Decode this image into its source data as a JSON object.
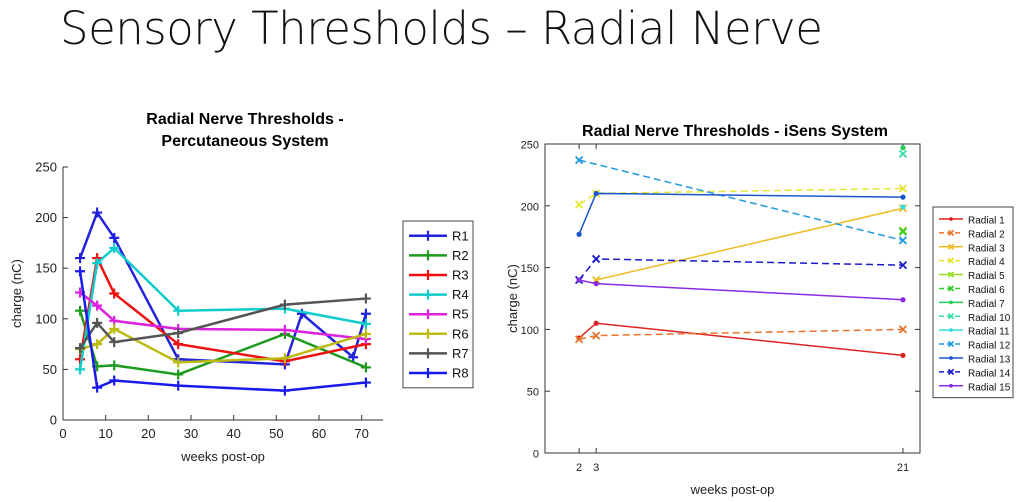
{
  "slide": {
    "title": "Sensory Thresholds – Radial Nerve"
  },
  "colors": {
    "background": "#ffffff",
    "title_text": "#111111"
  },
  "chart_data": [
    {
      "type": "line",
      "title": [
        "Radial Nerve Thresholds -",
        "Percutaneous System"
      ],
      "xlabel": "weeks post-op",
      "ylabel": "charge (nC)",
      "xlim": [
        0,
        75
      ],
      "ylim": [
        0,
        250
      ],
      "xticks": [
        0,
        10,
        20,
        30,
        40,
        50,
        60,
        70
      ],
      "yticks": [
        0,
        50,
        100,
        150,
        200,
        250
      ],
      "grid": false,
      "legend": "right, outside axes",
      "series": [
        {
          "name": "R1",
          "color": "#2222dd",
          "marker": "plus",
          "dash": false,
          "x": [
            4,
            8,
            12,
            27,
            52,
            56,
            68,
            71
          ],
          "y": [
            160,
            205,
            180,
            60,
            55,
            105,
            62,
            105
          ]
        },
        {
          "name": "R2",
          "color": "#1e9a1e",
          "marker": "plus",
          "dash": false,
          "x": [
            4,
            8,
            12,
            27,
            52,
            71
          ],
          "y": [
            108,
            53,
            54,
            45,
            85,
            52
          ]
        },
        {
          "name": "R3",
          "color": "#ee1111",
          "marker": "plus",
          "dash": false,
          "x": [
            4,
            8,
            12,
            27,
            52,
            71
          ],
          "y": [
            60,
            160,
            125,
            75,
            58,
            75
          ]
        },
        {
          "name": "R4",
          "color": "#11cccc",
          "marker": "plus",
          "dash": false,
          "x": [
            4,
            8,
            12,
            27,
            52,
            71
          ],
          "y": [
            50,
            155,
            170,
            108,
            110,
            95
          ]
        },
        {
          "name": "R5",
          "color": "#dd22dd",
          "marker": "plus",
          "dash": false,
          "x": [
            4,
            8,
            12,
            27,
            52,
            71
          ],
          "y": [
            126,
            113,
            98,
            90,
            89,
            80
          ]
        },
        {
          "name": "R6",
          "color": "#bbbb11",
          "marker": "plus",
          "dash": false,
          "x": [
            4,
            8,
            12,
            27,
            52,
            71
          ],
          "y": [
            70,
            75,
            90,
            57,
            61,
            85
          ]
        },
        {
          "name": "R7",
          "color": "#555555",
          "marker": "plus",
          "dash": false,
          "x": [
            4,
            8,
            12,
            27,
            52,
            71
          ],
          "y": [
            71,
            96,
            77,
            86,
            114,
            120
          ]
        },
        {
          "name": "R8",
          "color": "#1a1aee",
          "marker": "plus",
          "dash": false,
          "x": [
            4,
            8,
            12,
            27,
            52,
            71
          ],
          "y": [
            147,
            32,
            39,
            34,
            29,
            37
          ]
        }
      ]
    },
    {
      "type": "line",
      "title": [
        "Radial Nerve Thresholds - iSens System"
      ],
      "xlabel": "weeks post-op",
      "ylabel": "charge (nC)",
      "xlim": [
        0,
        22
      ],
      "ylim": [
        0,
        250
      ],
      "xticks": [
        2,
        3,
        21
      ],
      "yticks": [
        0,
        50,
        100,
        150,
        200,
        250
      ],
      "grid": false,
      "legend": "right, outside axes",
      "series": [
        {
          "name": "Radial 1",
          "color": "#dd2222",
          "marker": "dot",
          "dash": false,
          "x": [
            2,
            3,
            21
          ],
          "y": [
            93,
            105,
            79
          ]
        },
        {
          "name": "Radial 2",
          "color": "#e8742c",
          "marker": "x",
          "dash": true,
          "x": [
            2,
            3,
            21
          ],
          "y": [
            92,
            95,
            100
          ]
        },
        {
          "name": "Radial 3",
          "color": "#eebb22",
          "marker": "x",
          "dash": false,
          "x": [
            3,
            21
          ],
          "y": [
            140,
            198
          ]
        },
        {
          "name": "Radial 4",
          "color": "#e6e633",
          "marker": "x",
          "dash": true,
          "x": [
            2,
            3,
            21
          ],
          "y": [
            201,
            210,
            214
          ]
        },
        {
          "name": "Radial 5",
          "color": "#99dd22",
          "marker": "x",
          "dash": false,
          "x": [
            21
          ],
          "y": [
            180
          ]
        },
        {
          "name": "Radial 6",
          "color": "#33cc33",
          "marker": "x",
          "dash": true,
          "x": [
            21
          ],
          "y": [
            179
          ]
        },
        {
          "name": "Radial 7",
          "color": "#22cc55",
          "marker": "dot",
          "dash": false,
          "x": [
            21
          ],
          "y": [
            247
          ]
        },
        {
          "name": "Radial 10",
          "color": "#33ddaa",
          "marker": "x",
          "dash": true,
          "x": [
            21
          ],
          "y": [
            242
          ]
        },
        {
          "name": "Radial 11",
          "color": "#33dddd",
          "marker": "dot",
          "dash": false,
          "x": [
            21
          ],
          "y": [
            199
          ]
        },
        {
          "name": "Radial 12",
          "color": "#2299dd",
          "marker": "x",
          "dash": true,
          "x": [
            2,
            21
          ],
          "y": [
            237,
            172
          ]
        },
        {
          "name": "Radial 13",
          "color": "#1a55cc",
          "marker": "dot",
          "dash": false,
          "x": [
            2,
            3,
            21
          ],
          "y": [
            177,
            210,
            207
          ]
        },
        {
          "name": "Radial 14",
          "color": "#1a1acc",
          "marker": "x",
          "dash": true,
          "x": [
            2,
            3,
            21
          ],
          "y": [
            140,
            157,
            152
          ]
        },
        {
          "name": "Radial 15",
          "color": "#8a2be2",
          "marker": "dot",
          "dash": false,
          "x": [
            2,
            3,
            21
          ],
          "y": [
            140,
            137,
            124
          ]
        }
      ]
    }
  ]
}
